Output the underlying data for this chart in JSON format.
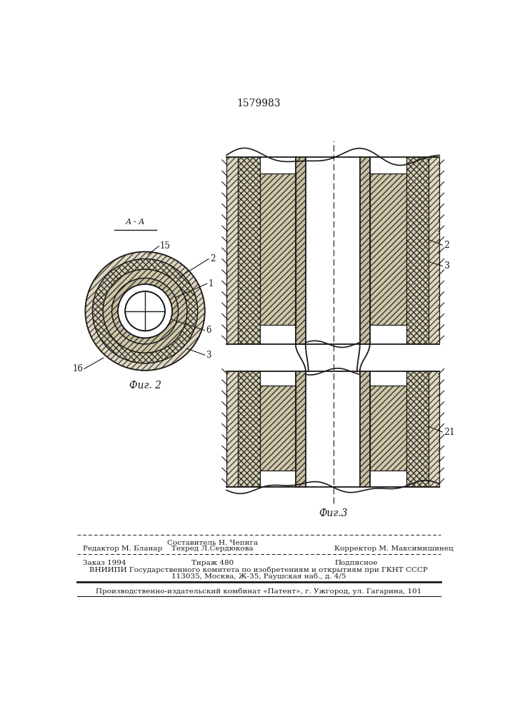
{
  "patent_number": "1579983",
  "fig2_label": "Фиг. 2",
  "fig3_label": "Фиг.3",
  "section_label": "А - А",
  "footer": {
    "editor": "Редактор М. Бланар",
    "composer": "Составитель Н. Чепига",
    "techred": "Техред Л.Сердюкова",
    "corrector": "Корректор М. Максимишинец",
    "order": "Заказ 1994",
    "circulation": "Тираж 480",
    "subscription": "Подписное",
    "vniip_line1": "ВНИИПИ Государственного комитета по изобретениям и открытиям при ГКНТ СССР",
    "vniip_line2": "113035, Москва, Ж-35, Раушская наб., д. 4/5",
    "publisher": "Производственно-издательский комбинат «Патент», г. Ужгород, ул. Гагарина, 101"
  }
}
